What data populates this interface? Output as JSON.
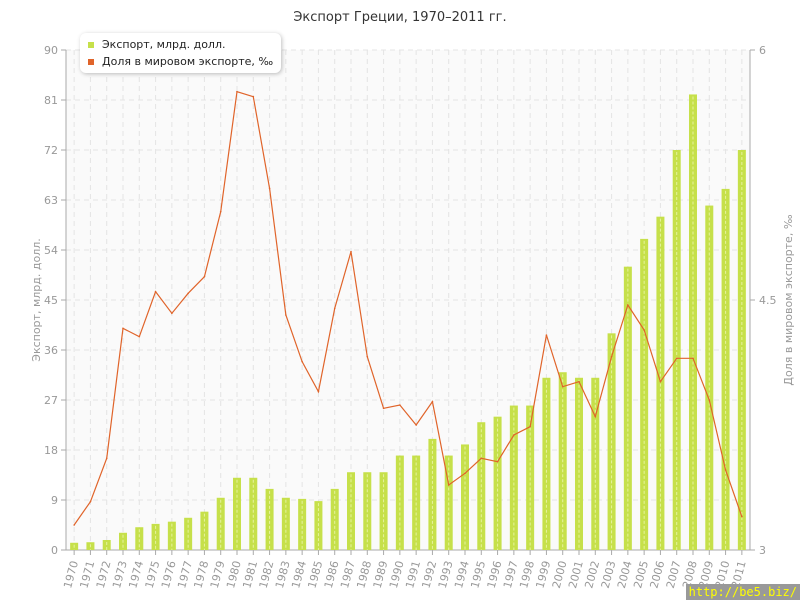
{
  "chart_data": {
    "type": "bar+line",
    "title": "Экспорт Греции, 1970–2011 гг.",
    "ylabel": "Экспорт, млрд. долл.",
    "y2label": "Доля в мировом экспорте, ‰",
    "ylim": [
      0,
      90
    ],
    "yticks": [
      0,
      9,
      18,
      27,
      36,
      45,
      54,
      63,
      72,
      81,
      90
    ],
    "y2lim": [
      3,
      6
    ],
    "y2ticks": [
      3,
      4.5,
      6
    ],
    "grid": true,
    "legend_position": "top-left",
    "categories": [
      "1970",
      "1971",
      "1972",
      "1973",
      "1974",
      "1975",
      "1976",
      "1977",
      "1978",
      "1979",
      "1980",
      "1981",
      "1982",
      "1983",
      "1984",
      "1985",
      "1986",
      "1987",
      "1988",
      "1989",
      "1990",
      "1991",
      "1992",
      "1993",
      "1994",
      "1995",
      "1996",
      "1997",
      "1998",
      "1999",
      "2000",
      "2001",
      "2002",
      "2003",
      "2004",
      "2005",
      "2006",
      "2007",
      "2008",
      "2009",
      "2010",
      "2011"
    ],
    "series": [
      {
        "name": "Экспорт, млрд. долл.",
        "type": "bar",
        "axis": "left",
        "color": "#c6e04a",
        "values": [
          1.3,
          1.4,
          1.8,
          3.1,
          4.1,
          4.7,
          5.1,
          5.8,
          6.9,
          9.4,
          13,
          13,
          11,
          9.4,
          9.2,
          8.8,
          11,
          14,
          14,
          14,
          17,
          17,
          20,
          17,
          19,
          23,
          24,
          26,
          26,
          31,
          32,
          31,
          31,
          39,
          51,
          56,
          60,
          72,
          82,
          62,
          65,
          72
        ]
      },
      {
        "name": "Доля в мировом экспорте, ‰",
        "type": "line",
        "axis": "right",
        "color": "#e0642a",
        "values": [
          3.15,
          3.29,
          3.55,
          4.33,
          4.28,
          4.55,
          4.42,
          4.54,
          4.64,
          5.03,
          5.75,
          5.72,
          5.17,
          4.41,
          4.13,
          3.95,
          4.45,
          4.79,
          4.16,
          3.85,
          3.87,
          3.75,
          3.89,
          3.39,
          3.46,
          3.55,
          3.53,
          3.69,
          3.74,
          4.29,
          3.98,
          4.01,
          3.8,
          4.16,
          4.47,
          4.32,
          4.01,
          4.15,
          4.15,
          3.9,
          3.48,
          3.2
        ]
      }
    ]
  },
  "watermark": "http://be5.biz/"
}
